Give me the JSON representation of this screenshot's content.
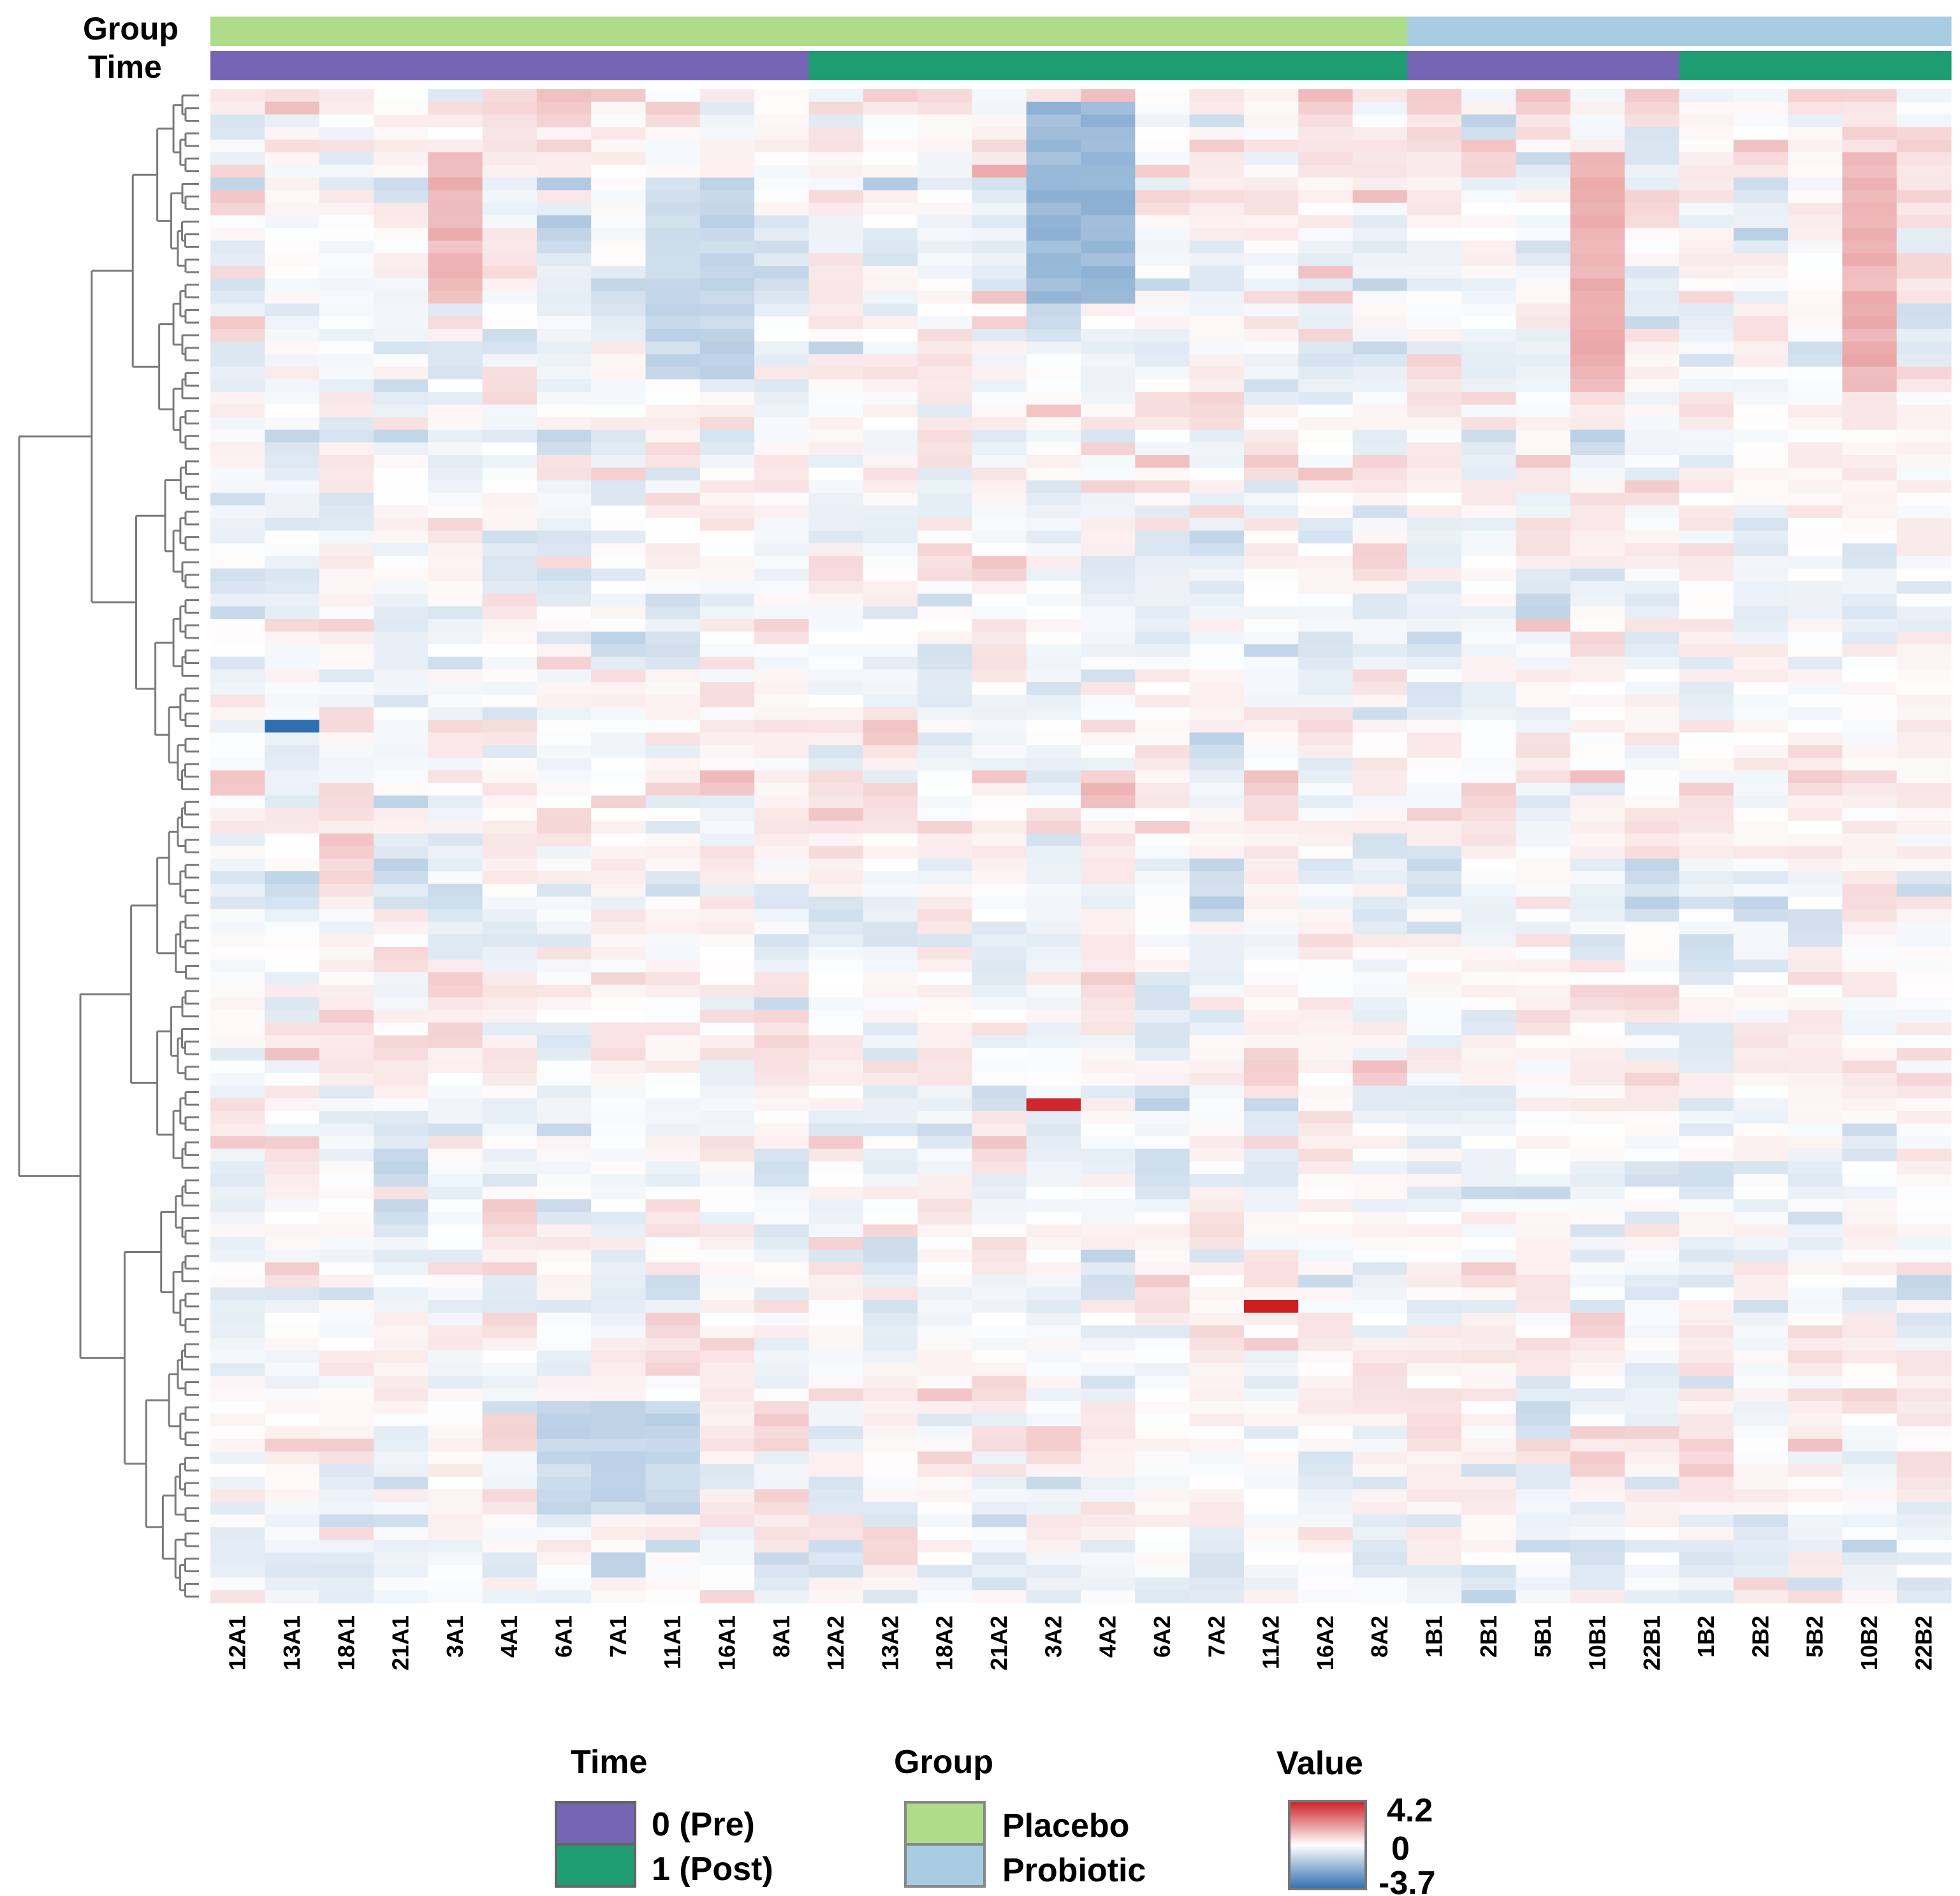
{
  "chart_data": {
    "type": "heatmap",
    "title": "",
    "row_annotation_labels": {
      "group": "Group",
      "time": "Time"
    },
    "columns": [
      "12A1",
      "13A1",
      "18A1",
      "21A1",
      "3A1",
      "4A1",
      "6A1",
      "7A1",
      "11A1",
      "16A1",
      "8A1",
      "12A2",
      "13A2",
      "18A2",
      "21A2",
      "3A2",
      "4A2",
      "6A2",
      "7A2",
      "11A2",
      "16A2",
      "8A2",
      "1B1",
      "2B1",
      "5B1",
      "10B1",
      "22B1",
      "1B2",
      "2B2",
      "5B2",
      "10B2",
      "22B2"
    ],
    "column_group": [
      "Placebo",
      "Placebo",
      "Placebo",
      "Placebo",
      "Placebo",
      "Placebo",
      "Placebo",
      "Placebo",
      "Placebo",
      "Placebo",
      "Placebo",
      "Placebo",
      "Placebo",
      "Placebo",
      "Placebo",
      "Placebo",
      "Placebo",
      "Placebo",
      "Placebo",
      "Placebo",
      "Placebo",
      "Placebo",
      "Probiotic",
      "Probiotic",
      "Probiotic",
      "Probiotic",
      "Probiotic",
      "Probiotic",
      "Probiotic",
      "Probiotic",
      "Probiotic",
      "Probiotic"
    ],
    "column_time": [
      "0 (Pre)",
      "0 (Pre)",
      "0 (Pre)",
      "0 (Pre)",
      "0 (Pre)",
      "0 (Pre)",
      "0 (Pre)",
      "0 (Pre)",
      "0 (Pre)",
      "0 (Pre)",
      "0 (Pre)",
      "1 (Post)",
      "1 (Post)",
      "1 (Post)",
      "1 (Post)",
      "1 (Post)",
      "1 (Post)",
      "1 (Post)",
      "1 (Post)",
      "1 (Post)",
      "1 (Post)",
      "1 (Post)",
      "0 (Pre)",
      "0 (Pre)",
      "0 (Pre)",
      "0 (Pre)",
      "0 (Pre)",
      "1 (Post)",
      "1 (Post)",
      "1 (Post)",
      "1 (Post)",
      "1 (Post)"
    ],
    "n_rows": 120,
    "value_range": [
      -3.7,
      4.2
    ],
    "row_dendrogram": true,
    "extreme_cells": [
      {
        "row": 80,
        "col": "3A2",
        "value": 4.0
      },
      {
        "row": 96,
        "col": "11A2",
        "value": 4.2
      },
      {
        "row": 50,
        "col": "13A1",
        "value": -3.7
      }
    ],
    "legend": {
      "time": {
        "title": "Time",
        "items": [
          {
            "label": "0 (Pre)",
            "color": "#7466b4"
          },
          {
            "label": "1 (Post)",
            "color": "#1e9c72"
          }
        ]
      },
      "group": {
        "title": "Group",
        "items": [
          {
            "label": "Placebo",
            "color": "#aedc88"
          },
          {
            "label": "Probiotic",
            "color": "#a8cce2"
          }
        ]
      },
      "value": {
        "title": "Value",
        "max_label": "4.2",
        "mid_label": "0",
        "min_label": "-3.7"
      }
    },
    "colors": {
      "high": "#cc1f24",
      "mid": "#ffffff",
      "low": "#2d6fb0"
    }
  }
}
